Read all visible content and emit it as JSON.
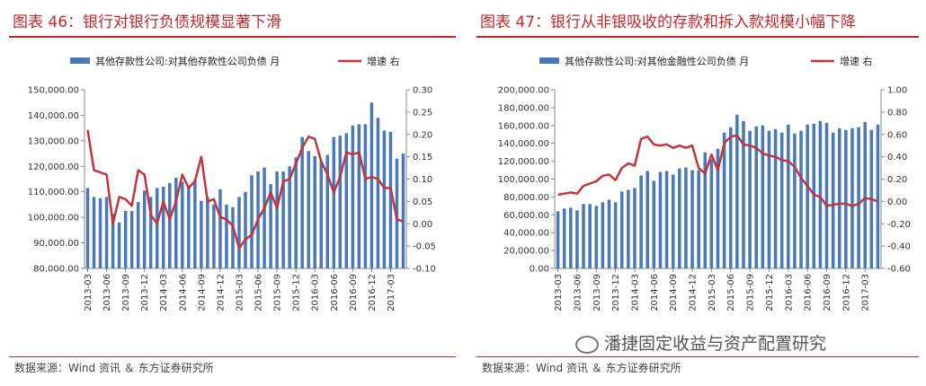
{
  "charts": [
    {
      "title": "图表 46：银行对银行负债规模显著下滑",
      "source": "数据来源：Wind 资讯 ＆ 东方证券研究所",
      "chart_data": {
        "type": "bar",
        "bar_color": "#4a78b8",
        "line_color": "#c0363c",
        "legend_position": "top",
        "grid": false,
        "x_ticks": [
          "2013-03",
          "2013-06",
          "2013-09",
          "2013-12",
          "2014-03",
          "2014-06",
          "2014-09",
          "2014-12",
          "2015-03",
          "2015-06",
          "2015-09",
          "2015-12",
          "2016-03",
          "2016-06",
          "2016-09",
          "2016-12",
          "2017-03"
        ],
        "y_left_ticks": [
          "150,000.00",
          "140,000.00",
          "130,000.00",
          "120,000.00",
          "110,000.00",
          "100,000.00",
          "90,000.00",
          "80,000.00"
        ],
        "y_right_ticks": [
          "0.30",
          "0.25",
          "0.20",
          "0.15",
          "0.10",
          "0.05",
          "0.00",
          "-0.05",
          "-0.10"
        ],
        "ylim_left": [
          80000,
          150000
        ],
        "ylim_right": [
          -0.1,
          0.3
        ],
        "series": [
          {
            "name": "其他存款性公司:对其他存款性公司负债 月",
            "axis": "left",
            "type": "bar",
            "values": [
              111500,
              108000,
              107500,
              108000,
              101500,
              98000,
              102500,
              102500,
              106000,
              110500,
              108000,
              111500,
              112000,
              113500,
              115500,
              114000,
              112500,
              114500,
              106500,
              108000,
              105000,
              111000,
              105000,
              104000,
              108000,
              110000,
              116500,
              118000,
              119500,
              113000,
              118000,
              118000,
              120000,
              123500,
              131500,
              126000,
              124000,
              122000,
              124500,
              131500,
              132000,
              133000,
              136000,
              136500,
              136500,
              145000,
              139000,
              134000,
              133500,
              123000,
              125000
            ]
          },
          {
            "name": "增速 右",
            "axis": "right",
            "type": "line",
            "values": [
              0.21,
              0.12,
              0.115,
              0.11,
              0.0,
              0.06,
              0.055,
              0.04,
              0.12,
              0.11,
              0.02,
              0.0,
              0.05,
              0.01,
              0.05,
              0.11,
              0.08,
              0.095,
              0.15,
              0.05,
              0.055,
              0.015,
              0.01,
              -0.005,
              -0.055,
              -0.035,
              -0.025,
              0.01,
              0.035,
              0.07,
              0.035,
              0.095,
              0.1,
              0.135,
              0.17,
              0.195,
              0.19,
              0.14,
              0.11,
              0.07,
              0.105,
              0.16,
              0.155,
              0.16,
              0.1,
              0.105,
              0.1,
              0.08,
              0.08,
              0.01,
              0.005
            ]
          }
        ]
      }
    },
    {
      "title": "图表 47：银行从非银吸收的存款和拆入款规模小幅下降",
      "source": "数据来源：Wind 资讯 ＆ 东方证券研究所",
      "chart_data": {
        "type": "bar",
        "bar_color": "#4a78b8",
        "line_color": "#c0363c",
        "legend_position": "top",
        "grid": false,
        "x_ticks": [
          "2013-03",
          "2013-06",
          "2013-09",
          "2013-12",
          "2014-03",
          "2014-06",
          "2014-09",
          "2014-12",
          "2015-03",
          "2015-06",
          "2015-09",
          "2015-12",
          "2016-03",
          "2016-06",
          "2016-09",
          "2016-12",
          "2017-03"
        ],
        "y_left_ticks": [
          "200,000.00",
          "180,000.00",
          "160,000.00",
          "140,000.00",
          "120,000.00",
          "100,000.00",
          "80,000.00",
          "60,000.00",
          "40,000.00",
          "20,000.00",
          "0.00"
        ],
        "y_right_ticks": [
          "1.00",
          "0.80",
          "0.60",
          "0.40",
          "0.20",
          "0.00",
          "-0.20",
          "-0.40",
          "-0.60"
        ],
        "ylim_left": [
          0,
          200000
        ],
        "ylim_right": [
          -0.6,
          1.0
        ],
        "series": [
          {
            "name": "其他存款性公司:对其他金融性公司负债 月",
            "axis": "left",
            "type": "bar",
            "values": [
              64000,
              67000,
              68000,
              65000,
              72000,
              72000,
              70000,
              74000,
              77000,
              74000,
              86000,
              88000,
              90000,
              104000,
              109000,
              98000,
              108000,
              109000,
              105000,
              112000,
              113000,
              110000,
              110000,
              130000,
              122000,
              134000,
              152000,
              158000,
              172000,
              165000,
              154000,
              159000,
              160000,
              154000,
              156000,
              152000,
              161000,
              151000,
              154000,
              161000,
              162000,
              165000,
              163000,
              152000,
              157000,
              155000,
              157000,
              158000,
              164000,
              155000,
              161000
            ]
          },
          {
            "name": "增速 右",
            "axis": "right",
            "type": "line",
            "values": [
              0.06,
              0.07,
              0.08,
              0.07,
              0.14,
              0.16,
              0.18,
              0.23,
              0.24,
              0.19,
              0.3,
              0.34,
              0.32,
              0.56,
              0.58,
              0.51,
              0.5,
              0.51,
              0.48,
              0.5,
              0.48,
              0.5,
              0.3,
              0.25,
              0.42,
              0.28,
              0.52,
              0.58,
              0.59,
              0.51,
              0.5,
              0.48,
              0.43,
              0.41,
              0.4,
              0.37,
              0.36,
              0.31,
              0.21,
              0.14,
              0.06,
              0.04,
              -0.04,
              -0.03,
              -0.02,
              -0.02,
              -0.04,
              -0.02,
              0.03,
              0.02,
              0.0
            ]
          }
        ]
      }
    }
  ],
  "watermark": "潘捷固定收益与资产配置研究"
}
